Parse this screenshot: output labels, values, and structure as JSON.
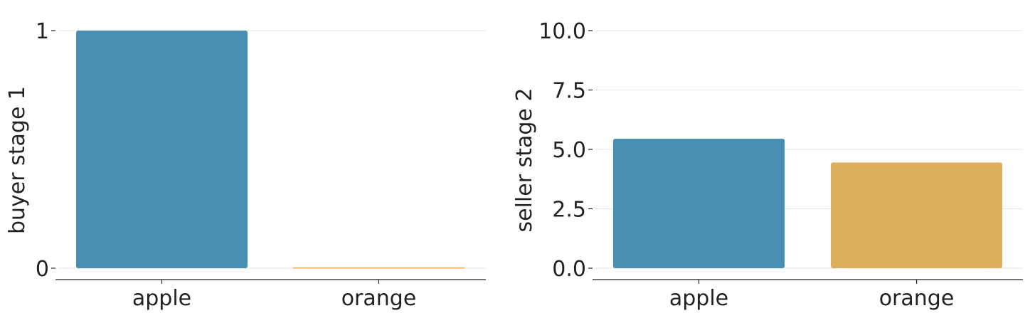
{
  "chart_data": [
    {
      "type": "bar",
      "categories": [
        "apple",
        "orange"
      ],
      "values": [
        1,
        0
      ],
      "ylabel": "buyer stage 1",
      "xlabel": "",
      "ylim": [
        0,
        1
      ],
      "yticks": [
        0,
        1
      ],
      "ytick_labels": [
        "0",
        "1"
      ],
      "grid": "horizontal",
      "colors": [
        "#488db2",
        "#ddaf5c"
      ]
    },
    {
      "type": "bar",
      "categories": [
        "apple",
        "orange"
      ],
      "values": [
        5.45,
        4.45
      ],
      "ylabel": "seller stage 2",
      "xlabel": "",
      "ylim": [
        0,
        10
      ],
      "yticks": [
        0,
        2.5,
        5,
        7.5,
        10
      ],
      "ytick_labels": [
        "0.0",
        "2.5",
        "5.0",
        "7.5",
        "10.0"
      ],
      "grid": "horizontal",
      "colors": [
        "#488db2",
        "#ddaf5c"
      ]
    }
  ]
}
